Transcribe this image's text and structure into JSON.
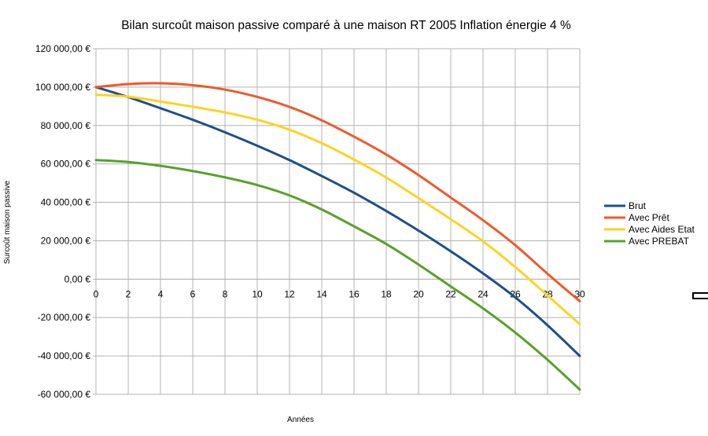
{
  "chart_data": {
    "type": "line",
    "title": "Bilan surcoût maison passive comparé à une maison RT 2005 Inflation énergie 4 %",
    "xlabel": "Années",
    "ylabel": "Surcoût maison passive",
    "x": [
      0,
      2,
      4,
      6,
      8,
      10,
      12,
      14,
      16,
      18,
      20,
      22,
      24,
      26,
      28,
      30
    ],
    "xticks": [
      "0",
      "2",
      "4",
      "6",
      "8",
      "10",
      "12",
      "14",
      "16",
      "18",
      "20",
      "22",
      "24",
      "26",
      "28",
      "30"
    ],
    "xlim": [
      0,
      30
    ],
    "ylim": [
      -60000,
      120000
    ],
    "yticks": [
      120000,
      100000,
      80000,
      60000,
      40000,
      20000,
      0,
      -20000,
      -40000,
      -60000
    ],
    "ytick_labels": [
      "120 000,00 €",
      "100 000,00 €",
      "80 000,00 €",
      "60 000,00 €",
      "40 000,00 €",
      "20 000,00 €",
      "0,00 €",
      "-20 000,00 €",
      "-40 000,00 €",
      "-60 000,00 €"
    ],
    "grid": true,
    "legend_position": "right",
    "series": [
      {
        "name": "Brut",
        "color": "#1f4e8c",
        "values": [
          100000,
          94800,
          89000,
          83000,
          76500,
          69500,
          62000,
          53700,
          45000,
          35500,
          25300,
          14500,
          3000,
          -9500,
          -24000,
          -40000
        ]
      },
      {
        "name": "Avec Prêt",
        "color": "#f0592a",
        "values": [
          100000,
          101600,
          102000,
          101000,
          98700,
          94900,
          89700,
          82700,
          74200,
          64900,
          54200,
          42500,
          30700,
          17700,
          2800,
          -11500
        ]
      },
      {
        "name": "Avec Aides Etat",
        "color": "#ffd320",
        "values": [
          96000,
          95000,
          92500,
          89800,
          86800,
          83000,
          77800,
          70800,
          62300,
          52900,
          42200,
          31200,
          19700,
          6300,
          -8500,
          -23500
        ]
      },
      {
        "name": "Avec PREBAT",
        "color": "#5aa02c",
        "values": [
          62000,
          61000,
          59000,
          56300,
          53000,
          49000,
          43600,
          36300,
          27500,
          18300,
          7600,
          -3800,
          -15200,
          -27800,
          -42000,
          -57500
        ]
      }
    ]
  }
}
